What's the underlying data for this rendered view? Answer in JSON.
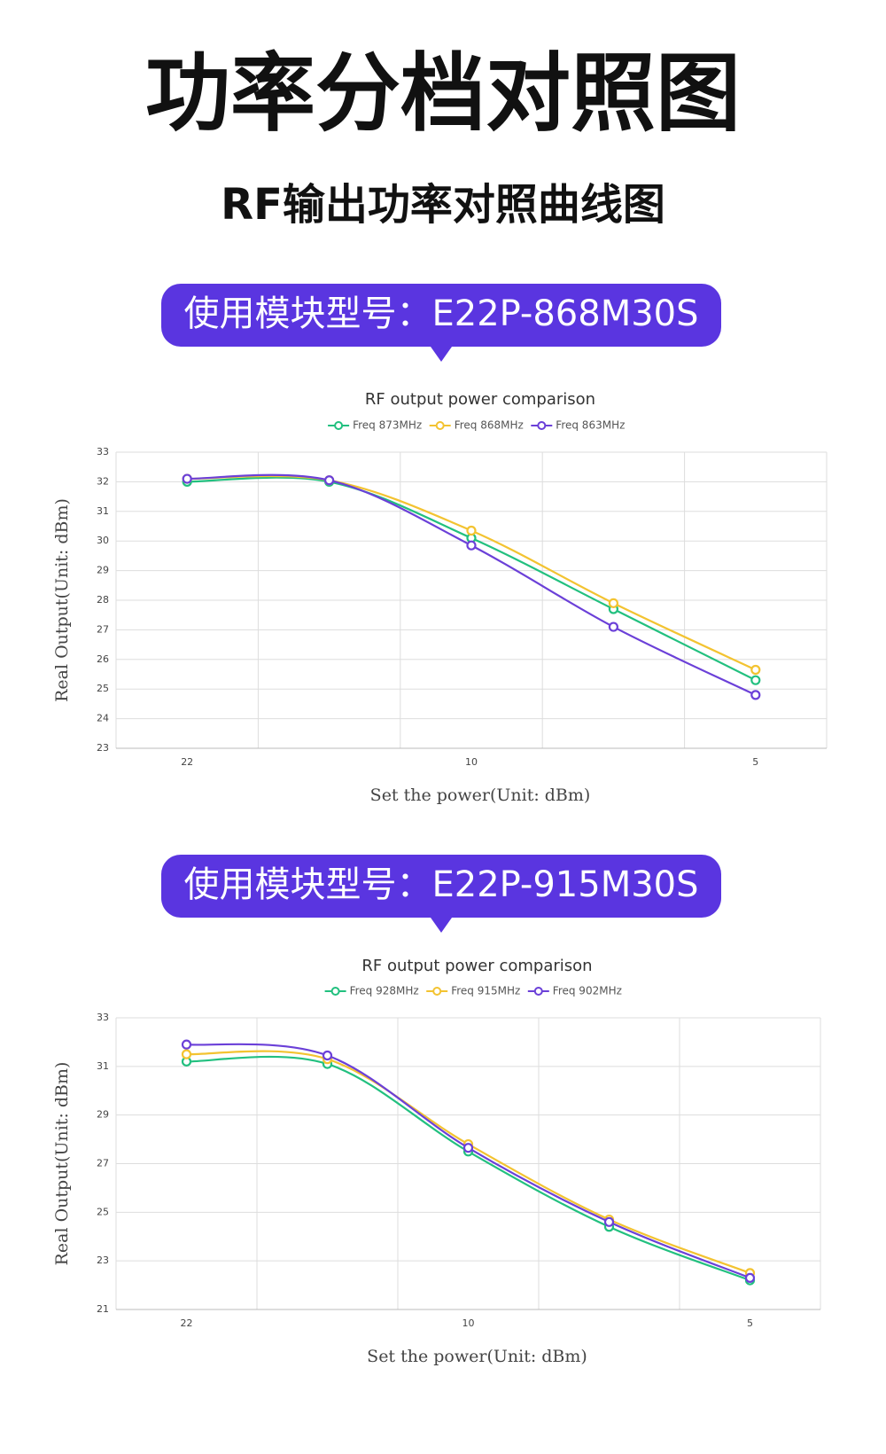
{
  "header": {
    "title": "功率分档对照图",
    "subtitle": "RF输出功率对照曲线图"
  },
  "banners": [
    "使用模块型号：E22P-868M30S",
    "使用模块型号：E22P-915M30S"
  ],
  "chart_data": [
    {
      "type": "line",
      "title": "RF output power comparison",
      "x_label": "Set the power(Unit: dBm)",
      "y_label": "Real Output(Unit: dBm)",
      "categories": [
        "22",
        null,
        "10",
        null,
        "5"
      ],
      "series": [
        {
          "name": "Freq 873MHz",
          "color": "#22c07f",
          "values": [
            32.0,
            32.0,
            30.1,
            27.7,
            25.3
          ]
        },
        {
          "name": "Freq 868MHz",
          "color": "#f3c331",
          "values": [
            32.1,
            32.05,
            30.35,
            27.9,
            25.65
          ]
        },
        {
          "name": "Freq 863MHz",
          "color": "#6b40d8",
          "values": [
            32.1,
            32.05,
            29.85,
            27.1,
            24.8
          ]
        }
      ],
      "ylim": [
        23,
        33
      ],
      "yticks": [
        23,
        24,
        25,
        26,
        27,
        28,
        29,
        30,
        31,
        32,
        33
      ],
      "grid": true,
      "legend": "top"
    },
    {
      "type": "line",
      "title": "RF output power comparison",
      "x_label": "Set the power(Unit: dBm)",
      "y_label": "Real Output(Unit: dBm)",
      "categories": [
        "22",
        null,
        "10",
        null,
        "5"
      ],
      "series": [
        {
          "name": "Freq 928MHz",
          "color": "#22c07f",
          "values": [
            31.2,
            31.1,
            27.5,
            24.4,
            22.2
          ]
        },
        {
          "name": "Freq 915MHz",
          "color": "#f3c331",
          "values": [
            31.5,
            31.3,
            27.8,
            24.7,
            22.5
          ]
        },
        {
          "name": "Freq 902MHz",
          "color": "#6b40d8",
          "values": [
            31.9,
            31.45,
            27.65,
            24.6,
            22.3
          ]
        }
      ],
      "ylim": [
        21,
        33
      ],
      "yticks": [
        21,
        23,
        25,
        27,
        29,
        31,
        33
      ],
      "grid": true,
      "legend": "top"
    }
  ]
}
